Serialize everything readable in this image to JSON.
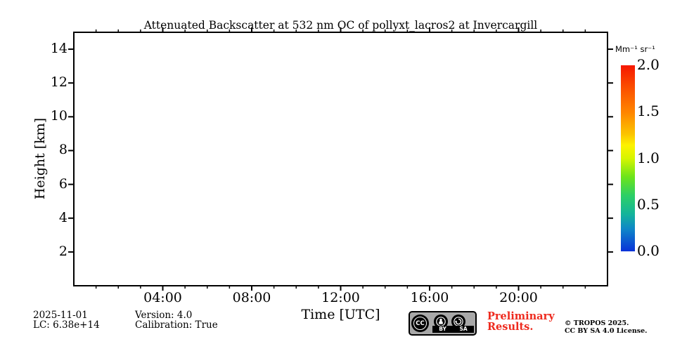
{
  "chart_data": {
    "type": "heatmap",
    "title": "Attenuated Backscatter at 532 nm OC of pollyxt_lacros2 at Invercargill",
    "xlabel": "Time [UTC]",
    "ylabel": "Height [km]",
    "x_axis": {
      "min": 0,
      "max": 24,
      "major_ticks": [
        4,
        8,
        12,
        16,
        20
      ],
      "major_tick_labels": [
        "04:00",
        "08:00",
        "12:00",
        "16:00",
        "20:00"
      ],
      "minor_tick_interval_hours": 1
    },
    "y_axis": {
      "min": 0,
      "max": 15,
      "major_ticks": [
        2,
        4,
        6,
        8,
        10,
        12,
        14
      ],
      "major_tick_labels": [
        "2",
        "4",
        "6",
        "8",
        "10",
        "12",
        "14"
      ]
    },
    "values": [],
    "colorbar": {
      "unit_label": "Mm⁻¹ sr⁻¹",
      "min": 0,
      "max": 2,
      "ticks": [
        0,
        0.5,
        1,
        1.5,
        2
      ],
      "tick_labels": [
        "0.0",
        "0.5",
        "1.0",
        "1.5",
        "2.0"
      ],
      "gradient_bottom_to_top": [
        [
          "0%",
          "#0a32d8"
        ],
        [
          "12%",
          "#0e86c8"
        ],
        [
          "20%",
          "#14b49b"
        ],
        [
          "30%",
          "#2ccf66"
        ],
        [
          "40%",
          "#6ce41a"
        ],
        [
          "50%",
          "#d7f500"
        ],
        [
          "57%",
          "#fdf200"
        ],
        [
          "63%",
          "#fbc400"
        ],
        [
          "75%",
          "#ff8400"
        ],
        [
          "88%",
          "#fb4f00"
        ],
        [
          "100%",
          "#f61700"
        ]
      ]
    }
  },
  "footer": {
    "date": "2025-11-01",
    "lidar_constant": "LC: 6.38e+14",
    "version": "Version: 4.0",
    "calibration": "Calibration: True",
    "preliminary": {
      "line1": "Preliminary",
      "line2": "Results.",
      "color": "#ee2a1e"
    },
    "copyright": {
      "line1": "© TROPOS 2025.",
      "line2": "CC BY SA 4.0 License."
    },
    "license_badge": {
      "cc": "CC",
      "by": "BY",
      "sa": "SA"
    }
  }
}
